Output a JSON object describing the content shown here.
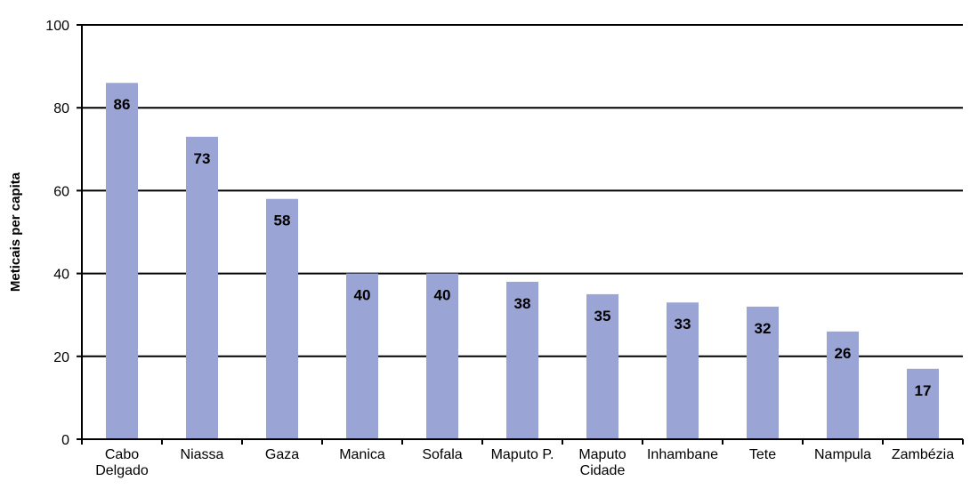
{
  "chart_data": {
    "type": "bar",
    "ylabel": "Meticais per capita",
    "categories": [
      "Cabo Delgado",
      "Niassa",
      "Gaza",
      "Manica",
      "Sofala",
      "Maputo P.",
      "Maputo Cidade",
      "Inhambane",
      "Tete",
      "Nampula",
      "Zambézia"
    ],
    "values": [
      86,
      73,
      58,
      40,
      40,
      38,
      35,
      33,
      32,
      26,
      17
    ],
    "color": "#9ba5d5",
    "ylim": [
      0,
      100
    ],
    "yticks": [
      0,
      20,
      40,
      60,
      80,
      100
    ],
    "grid": true
  }
}
